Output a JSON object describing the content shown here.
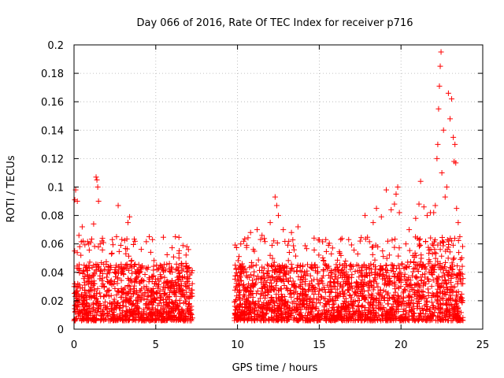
{
  "chart_data": {
    "type": "scatter",
    "title": "Day 066 of 2016, Rate Of TEC Index for receiver p716",
    "xlabel": "GPS time / hours",
    "ylabel": "ROTI / TECUs",
    "xlim": [
      0,
      25
    ],
    "ylim": [
      0,
      0.2
    ],
    "xticks": [
      0,
      5,
      10,
      15,
      20,
      25
    ],
    "xtick_labels": [
      "0",
      "5",
      "10",
      "15",
      "20",
      "25"
    ],
    "yticks": [
      0,
      0.02,
      0.04,
      0.06,
      0.08,
      0.1,
      0.12,
      0.14,
      0.16,
      0.18,
      0.2
    ],
    "ytick_labels": [
      "0",
      "0.02",
      "0.04",
      "0.06",
      "0.08",
      "0.1",
      "0.12",
      "0.14",
      "0.16",
      "0.18",
      "0.2"
    ],
    "grid": true,
    "marker": "+",
    "color": "#ff0000",
    "series": [
      {
        "name": "ROTI",
        "note": "dense point cloud, data gap between ~7.3 h and ~9.8 h",
        "segments": [
          {
            "x_range": [
              0.0,
              7.25
            ],
            "baseline": 0.022
          },
          {
            "x_range": [
              9.8,
              23.8
            ],
            "baseline": 0.025
          }
        ],
        "points": [
          [
            0.05,
            0.091
          ],
          [
            0.1,
            0.098
          ],
          [
            0.2,
            0.09
          ],
          [
            0.3,
            0.066
          ],
          [
            0.35,
            0.058
          ],
          [
            0.5,
            0.072
          ],
          [
            0.9,
            0.06
          ],
          [
            1.2,
            0.074
          ],
          [
            1.35,
            0.107
          ],
          [
            1.4,
            0.105
          ],
          [
            1.45,
            0.1
          ],
          [
            1.5,
            0.09
          ],
          [
            1.6,
            0.06
          ],
          [
            2.7,
            0.087
          ],
          [
            2.6,
            0.065
          ],
          [
            3.3,
            0.075
          ],
          [
            3.4,
            0.079
          ],
          [
            4.6,
            0.065
          ],
          [
            4.8,
            0.063
          ],
          [
            6.2,
            0.065
          ],
          [
            6.9,
            0.058
          ],
          [
            7.0,
            0.056
          ],
          [
            10.2,
            0.06
          ],
          [
            10.8,
            0.068
          ],
          [
            11.2,
            0.07
          ],
          [
            11.5,
            0.066
          ],
          [
            12.0,
            0.075
          ],
          [
            12.3,
            0.093
          ],
          [
            12.4,
            0.087
          ],
          [
            12.5,
            0.08
          ],
          [
            12.8,
            0.07
          ],
          [
            13.3,
            0.068
          ],
          [
            13.7,
            0.072
          ],
          [
            15.4,
            0.063
          ],
          [
            16.8,
            0.063
          ],
          [
            17.5,
            0.062
          ],
          [
            17.8,
            0.08
          ],
          [
            18.3,
            0.075
          ],
          [
            18.5,
            0.085
          ],
          [
            18.8,
            0.079
          ],
          [
            19.1,
            0.098
          ],
          [
            19.4,
            0.084
          ],
          [
            19.6,
            0.088
          ],
          [
            19.7,
            0.095
          ],
          [
            19.8,
            0.1
          ],
          [
            19.9,
            0.082
          ],
          [
            20.3,
            0.06
          ],
          [
            20.5,
            0.07
          ],
          [
            20.9,
            0.078
          ],
          [
            21.1,
            0.088
          ],
          [
            21.2,
            0.104
          ],
          [
            21.4,
            0.086
          ],
          [
            21.6,
            0.08
          ],
          [
            21.8,
            0.082
          ],
          [
            22.0,
            0.082
          ],
          [
            22.1,
            0.087
          ],
          [
            22.2,
            0.12
          ],
          [
            22.25,
            0.13
          ],
          [
            22.3,
            0.155
          ],
          [
            22.35,
            0.171
          ],
          [
            22.4,
            0.185
          ],
          [
            22.45,
            0.195
          ],
          [
            22.5,
            0.11
          ],
          [
            22.6,
            0.14
          ],
          [
            22.7,
            0.093
          ],
          [
            22.8,
            0.1
          ],
          [
            22.9,
            0.166
          ],
          [
            23.0,
            0.148
          ],
          [
            23.1,
            0.162
          ],
          [
            23.2,
            0.135
          ],
          [
            23.25,
            0.118
          ],
          [
            23.3,
            0.13
          ],
          [
            23.35,
            0.117
          ],
          [
            23.4,
            0.085
          ],
          [
            23.5,
            0.075
          ],
          [
            23.6,
            0.065
          ]
        ]
      }
    ]
  }
}
